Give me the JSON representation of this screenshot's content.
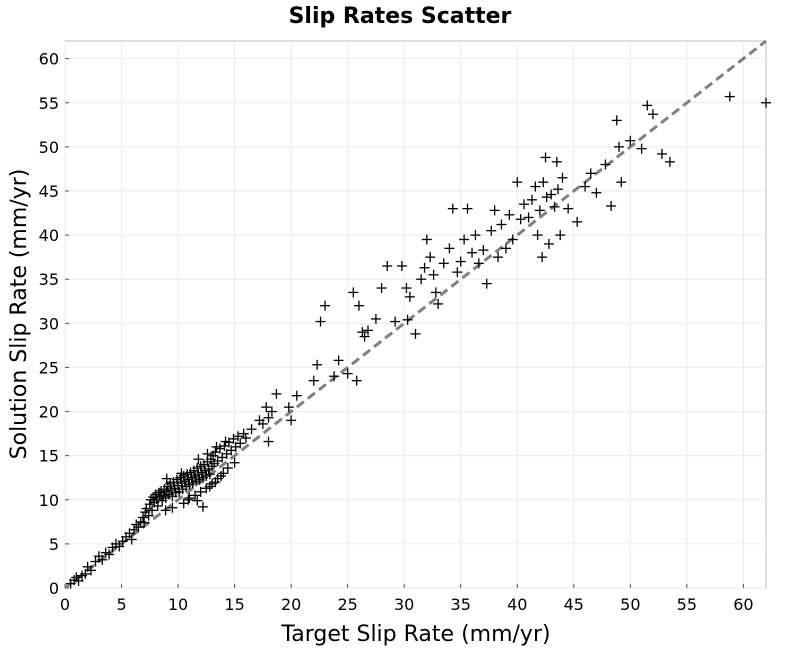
{
  "chart_data": {
    "type": "scatter",
    "title": "Slip Rates Scatter",
    "xlabel": "Target Slip Rate (mm/yr)",
    "ylabel": "Solution Slip Rate (mm/yr)",
    "xlim": [
      0,
      62
    ],
    "ylim": [
      0,
      62
    ],
    "xticks": [
      "0",
      "5",
      "10",
      "15",
      "20",
      "25",
      "30",
      "35",
      "40",
      "45",
      "50",
      "55",
      "60"
    ],
    "yticks": [
      "0",
      "5",
      "10",
      "15",
      "20",
      "25",
      "30",
      "35",
      "40",
      "45",
      "50",
      "55",
      "60"
    ],
    "grid": true,
    "marker": "+",
    "marker_color": "#000000",
    "reference_line": {
      "style": "dashed",
      "color": "#808080",
      "x": [
        0,
        62
      ],
      "y": [
        0,
        62
      ]
    },
    "points": [
      [
        0.5,
        0.5
      ],
      [
        0.8,
        0.9
      ],
      [
        1.0,
        1.2
      ],
      [
        1.2,
        0.8
      ],
      [
        1.5,
        1.4
      ],
      [
        1.8,
        1.6
      ],
      [
        2.0,
        2.4
      ],
      [
        2.3,
        2.0
      ],
      [
        2.7,
        3.0
      ],
      [
        3.0,
        3.6
      ],
      [
        3.3,
        3.2
      ],
      [
        3.6,
        4.0
      ],
      [
        3.9,
        3.8
      ],
      [
        4.2,
        4.6
      ],
      [
        4.5,
        5.0
      ],
      [
        4.8,
        4.7
      ],
      [
        5.1,
        5.3
      ],
      [
        5.4,
        5.8
      ],
      [
        5.7,
        6.2
      ],
      [
        5.9,
        5.5
      ],
      [
        6.1,
        6.6
      ],
      [
        6.3,
        7.2
      ],
      [
        6.5,
        6.9
      ],
      [
        6.7,
        7.5
      ],
      [
        6.9,
        8.0
      ],
      [
        7.0,
        7.4
      ],
      [
        7.1,
        8.6
      ],
      [
        7.2,
        9.0
      ],
      [
        7.4,
        8.2
      ],
      [
        7.5,
        9.5
      ],
      [
        7.6,
        10.0
      ],
      [
        7.7,
        8.8
      ],
      [
        7.8,
        10.3
      ],
      [
        7.9,
        9.7
      ],
      [
        8.0,
        10.6
      ],
      [
        8.1,
        10.1
      ],
      [
        8.2,
        9.3
      ],
      [
        8.3,
        10.8
      ],
      [
        8.4,
        10.4
      ],
      [
        8.5,
        11.0
      ],
      [
        8.6,
        9.9
      ],
      [
        8.7,
        10.5
      ],
      [
        8.8,
        11.2
      ],
      [
        8.9,
        10.2
      ],
      [
        9.0,
        10.9
      ],
      [
        9.1,
        11.5
      ],
      [
        9.2,
        10.6
      ],
      [
        9.3,
        11.8
      ],
      [
        9.4,
        11.1
      ],
      [
        9.5,
        10.4
      ],
      [
        9.6,
        12.0
      ],
      [
        9.7,
        11.3
      ],
      [
        9.8,
        10.8
      ],
      [
        9.9,
        12.3
      ],
      [
        10.0,
        11.6
      ],
      [
        10.1,
        10.9
      ],
      [
        10.2,
        12.5
      ],
      [
        10.3,
        11.9
      ],
      [
        10.4,
        11.2
      ],
      [
        10.5,
        12.7
      ],
      [
        10.6,
        12.1
      ],
      [
        10.7,
        11.5
      ],
      [
        10.8,
        12.9
      ],
      [
        10.9,
        12.3
      ],
      [
        11.0,
        11.7
      ],
      [
        11.1,
        13.1
      ],
      [
        11.2,
        12.5
      ],
      [
        11.3,
        11.9
      ],
      [
        11.4,
        13.3
      ],
      [
        11.5,
        12.7
      ],
      [
        11.6,
        12.1
      ],
      [
        11.7,
        13.6
      ],
      [
        11.8,
        12.9
      ],
      [
        11.9,
        12.3
      ],
      [
        12.0,
        13.8
      ],
      [
        12.1,
        13.1
      ],
      [
        12.2,
        12.5
      ],
      [
        12.3,
        14.0
      ],
      [
        12.4,
        13.3
      ],
      [
        12.5,
        12.7
      ],
      [
        12.6,
        14.3
      ],
      [
        12.7,
        13.5
      ],
      [
        12.8,
        12.9
      ],
      [
        12.9,
        14.6
      ],
      [
        13.0,
        13.8
      ],
      [
        13.1,
        15.0
      ],
      [
        13.2,
        14.1
      ],
      [
        13.3,
        15.4
      ],
      [
        13.5,
        14.4
      ],
      [
        13.7,
        15.8
      ],
      [
        13.9,
        14.8
      ],
      [
        14.1,
        16.1
      ],
      [
        14.3,
        15.2
      ],
      [
        14.5,
        16.5
      ],
      [
        14.7,
        15.6
      ],
      [
        14.9,
        16.9
      ],
      [
        15.1,
        16.0
      ],
      [
        15.3,
        17.2
      ],
      [
        15.5,
        16.4
      ],
      [
        15.8,
        17.5
      ],
      [
        10.5,
        9.6
      ],
      [
        11.0,
        10.2
      ],
      [
        11.5,
        10.5
      ],
      [
        12.0,
        10.9
      ],
      [
        12.5,
        11.3
      ],
      [
        13.0,
        11.8
      ],
      [
        13.5,
        12.4
      ],
      [
        14.0,
        13.0
      ],
      [
        12.2,
        9.2
      ],
      [
        11.7,
        9.9
      ],
      [
        13.3,
        12.0
      ],
      [
        14.4,
        13.6
      ],
      [
        10.9,
        10.0
      ],
      [
        9.5,
        9.1
      ],
      [
        8.9,
        8.8
      ],
      [
        12.8,
        11.5
      ],
      [
        13.8,
        12.7
      ],
      [
        15.0,
        14.2
      ],
      [
        9.0,
        12.4
      ],
      [
        10.3,
        13.0
      ],
      [
        11.8,
        14.6
      ],
      [
        12.6,
        15.2
      ],
      [
        13.4,
        16.0
      ],
      [
        14.2,
        16.6
      ],
      [
        16.0,
        17.0
      ],
      [
        16.5,
        18.0
      ],
      [
        17.2,
        19.0
      ],
      [
        17.8,
        20.5
      ],
      [
        18.3,
        20.0
      ],
      [
        18.7,
        22.0
      ],
      [
        18.0,
        19.3
      ],
      [
        17.5,
        18.6
      ],
      [
        18.0,
        16.6
      ],
      [
        19.8,
        20.5
      ],
      [
        20.0,
        19.0
      ],
      [
        20.5,
        21.8
      ],
      [
        22.0,
        23.5
      ],
      [
        22.3,
        25.3
      ],
      [
        22.6,
        30.2
      ],
      [
        23.0,
        32.0
      ],
      [
        23.8,
        24.0
      ],
      [
        24.2,
        25.8
      ],
      [
        25.0,
        24.3
      ],
      [
        25.5,
        33.5
      ],
      [
        26.0,
        32.0
      ],
      [
        26.3,
        29.0
      ],
      [
        26.5,
        28.5
      ],
      [
        26.8,
        29.2
      ],
      [
        25.8,
        23.5
      ],
      [
        27.5,
        30.5
      ],
      [
        28.0,
        34.0
      ],
      [
        28.5,
        36.5
      ],
      [
        29.2,
        30.2
      ],
      [
        29.8,
        36.5
      ],
      [
        30.2,
        34.0
      ],
      [
        30.3,
        30.4
      ],
      [
        30.5,
        33.0
      ],
      [
        31.0,
        28.8
      ],
      [
        31.5,
        35.0
      ],
      [
        31.8,
        36.3
      ],
      [
        32.0,
        39.5
      ],
      [
        32.3,
        37.5
      ],
      [
        32.6,
        35.5
      ],
      [
        32.8,
        33.5
      ],
      [
        33.0,
        32.2
      ],
      [
        33.5,
        36.8
      ],
      [
        34.0,
        38.5
      ],
      [
        34.3,
        43.0
      ],
      [
        34.7,
        35.8
      ],
      [
        35.0,
        37.0
      ],
      [
        35.3,
        39.5
      ],
      [
        35.6,
        43.0
      ],
      [
        36.0,
        38.0
      ],
      [
        36.3,
        40.0
      ],
      [
        36.6,
        36.8
      ],
      [
        37.0,
        38.3
      ],
      [
        37.3,
        34.5
      ],
      [
        37.7,
        40.5
      ],
      [
        38.0,
        42.8
      ],
      [
        38.3,
        37.5
      ],
      [
        38.6,
        41.2
      ],
      [
        39.0,
        38.5
      ],
      [
        39.3,
        42.3
      ],
      [
        39.6,
        39.5
      ],
      [
        40.0,
        46.0
      ],
      [
        40.3,
        41.8
      ],
      [
        40.6,
        43.5
      ],
      [
        41.0,
        42.0
      ],
      [
        41.3,
        44.0
      ],
      [
        41.6,
        45.5
      ],
      [
        42.0,
        42.8
      ],
      [
        42.3,
        46.0
      ],
      [
        42.6,
        44.3
      ],
      [
        43.0,
        44.6
      ],
      [
        43.3,
        43.2
      ],
      [
        43.6,
        45.2
      ],
      [
        44.0,
        46.5
      ],
      [
        42.5,
        48.8
      ],
      [
        43.5,
        48.3
      ],
      [
        45.3,
        41.5
      ],
      [
        41.8,
        40.0
      ],
      [
        42.2,
        37.5
      ],
      [
        43.8,
        40.0
      ],
      [
        42.8,
        39.0
      ],
      [
        44.5,
        43.0
      ],
      [
        46.0,
        45.5
      ],
      [
        46.5,
        47.0
      ],
      [
        47.0,
        44.8
      ],
      [
        47.8,
        48.0
      ],
      [
        48.3,
        43.3
      ],
      [
        48.8,
        53.0
      ],
      [
        49.0,
        50.0
      ],
      [
        49.2,
        46.0
      ],
      [
        50.0,
        50.7
      ],
      [
        51.0,
        49.8
      ],
      [
        51.5,
        54.7
      ],
      [
        52.0,
        53.7
      ],
      [
        52.8,
        49.2
      ],
      [
        53.5,
        48.3
      ],
      [
        58.8,
        55.7
      ],
      [
        62.0,
        55.0
      ]
    ]
  }
}
